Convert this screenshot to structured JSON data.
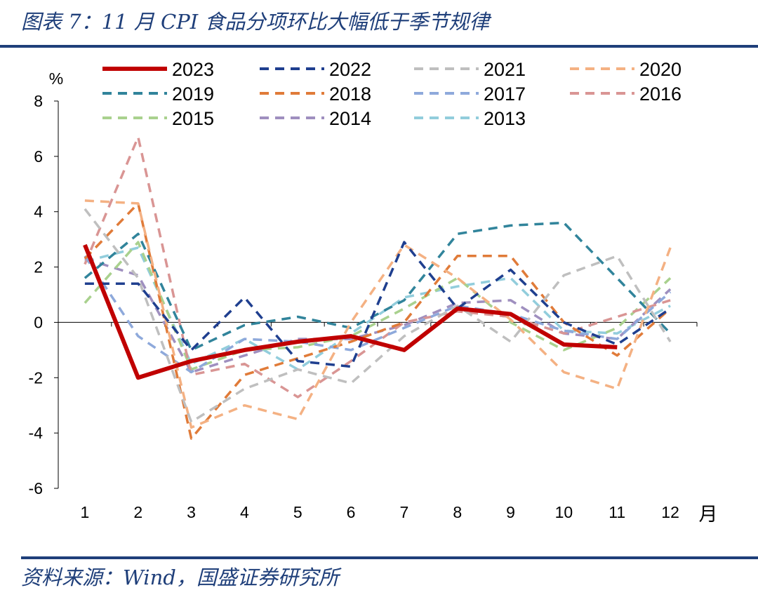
{
  "header": {
    "title": "图表 7：11 月 CPI 食品分项环比大幅低于季节规律"
  },
  "footer": {
    "source": "资料来源：Wind，国盛证券研究所"
  },
  "chart_data": {
    "type": "line",
    "ylabel": "%",
    "xlabel": "月",
    "ylim": [
      -6,
      8
    ],
    "yticks": [
      "8",
      "6",
      "4",
      "2",
      "0",
      "-2",
      "-4",
      "-6"
    ],
    "categories": [
      "1",
      "2",
      "3",
      "4",
      "5",
      "6",
      "7",
      "8",
      "9",
      "10",
      "11",
      "12"
    ],
    "legend_position": "top",
    "series": [
      {
        "name": "2023",
        "color": "#c00000",
        "style": "solid",
        "values": [
          2.8,
          -2.0,
          -1.4,
          -1.0,
          -0.7,
          -0.5,
          -1.0,
          0.5,
          0.3,
          -0.8,
          -0.9,
          null
        ]
      },
      {
        "name": "2022",
        "color": "#1f3f8f",
        "style": "dashed",
        "values": [
          1.4,
          1.4,
          -1.0,
          0.9,
          -1.4,
          -1.6,
          2.9,
          0.5,
          1.9,
          0.0,
          -0.8,
          0.5
        ]
      },
      {
        "name": "2021",
        "color": "#bfbfbf",
        "style": "dashed",
        "values": [
          4.1,
          1.6,
          -3.6,
          -2.4,
          -1.7,
          -2.2,
          -0.5,
          0.6,
          -0.7,
          1.7,
          2.4,
          -0.7
        ]
      },
      {
        "name": "2020",
        "color": "#f4b183",
        "style": "dashed",
        "values": [
          4.4,
          4.3,
          -3.8,
          -3.0,
          -3.5,
          0.0,
          2.8,
          1.6,
          0.1,
          -1.8,
          -2.4,
          2.7
        ]
      },
      {
        "name": "2019",
        "color": "#31849b",
        "style": "dashed",
        "values": [
          1.6,
          3.2,
          -1.0,
          -0.1,
          0.2,
          -0.2,
          0.8,
          3.2,
          3.5,
          3.6,
          1.6,
          -0.4
        ]
      },
      {
        "name": "2018",
        "color": "#e07b39",
        "style": "dashed",
        "values": [
          2.3,
          4.3,
          -4.2,
          -1.9,
          -1.3,
          -0.7,
          0.0,
          2.4,
          2.4,
          0.0,
          -1.2,
          0.5
        ]
      },
      {
        "name": "2017",
        "color": "#8ea9db",
        "style": "dashed",
        "values": [
          2.4,
          -0.5,
          -1.8,
          -0.6,
          -0.7,
          -1.0,
          -0.2,
          0.6,
          0.3,
          -0.3,
          -0.6,
          1.1
        ]
      },
      {
        "name": "2016",
        "color": "#d99594",
        "style": "dashed",
        "values": [
          2.1,
          6.7,
          -1.9,
          -1.5,
          -2.7,
          -1.4,
          0.0,
          0.4,
          0.2,
          -0.4,
          0.2,
          0.8
        ]
      },
      {
        "name": "2015",
        "color": "#a9d18e",
        "style": "dashed",
        "values": [
          0.7,
          2.9,
          -1.7,
          -1.0,
          -0.9,
          -0.5,
          0.5,
          1.6,
          0.0,
          -1.0,
          -0.2,
          1.6
        ]
      },
      {
        "name": "2014",
        "color": "#9f8fbf",
        "style": "dashed",
        "values": [
          2.3,
          1.7,
          -1.8,
          -1.2,
          -0.6,
          -0.6,
          -0.1,
          0.7,
          0.8,
          -0.4,
          -0.6,
          1.2
        ]
      },
      {
        "name": "2013",
        "color": "#92cddc",
        "style": "dashed",
        "values": [
          2.2,
          2.7,
          -1.5,
          -0.6,
          -1.7,
          -0.4,
          0.9,
          1.3,
          1.6,
          -0.3,
          -0.4,
          0.6
        ]
      }
    ]
  }
}
